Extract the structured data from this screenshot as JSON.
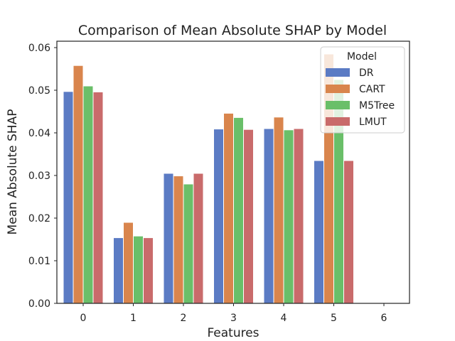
{
  "chart_data": {
    "type": "bar",
    "title": "Comparison of Mean Absolute SHAP by Model",
    "xlabel": "Features",
    "ylabel": "Mean Absolute SHAP",
    "categories": [
      "0",
      "1",
      "2",
      "3",
      "4",
      "5",
      "6"
    ],
    "ylim": [
      0,
      0.0615
    ],
    "yticks": [
      "0.00",
      "0.01",
      "0.02",
      "0.03",
      "0.04",
      "0.05",
      "0.06"
    ],
    "grid": false,
    "legend": {
      "title": "Model",
      "placement": "top-right"
    },
    "series": [
      {
        "name": "DR",
        "color": "#5b7bc4",
        "values": [
          0.0497,
          0.0154,
          0.0305,
          0.0409,
          0.041,
          0.0335,
          null
        ]
      },
      {
        "name": "CART",
        "color": "#d9854d",
        "values": [
          0.0558,
          0.019,
          0.0299,
          0.0446,
          0.0437,
          0.0585,
          null
        ]
      },
      {
        "name": "M5Tree",
        "color": "#6abf69",
        "values": [
          0.051,
          0.0158,
          0.028,
          0.0436,
          0.0407,
          0.0525,
          null
        ]
      },
      {
        "name": "LMUT",
        "color": "#c96b6b",
        "values": [
          0.0496,
          0.0154,
          0.0305,
          0.0408,
          0.041,
          0.0335,
          null
        ]
      }
    ]
  }
}
